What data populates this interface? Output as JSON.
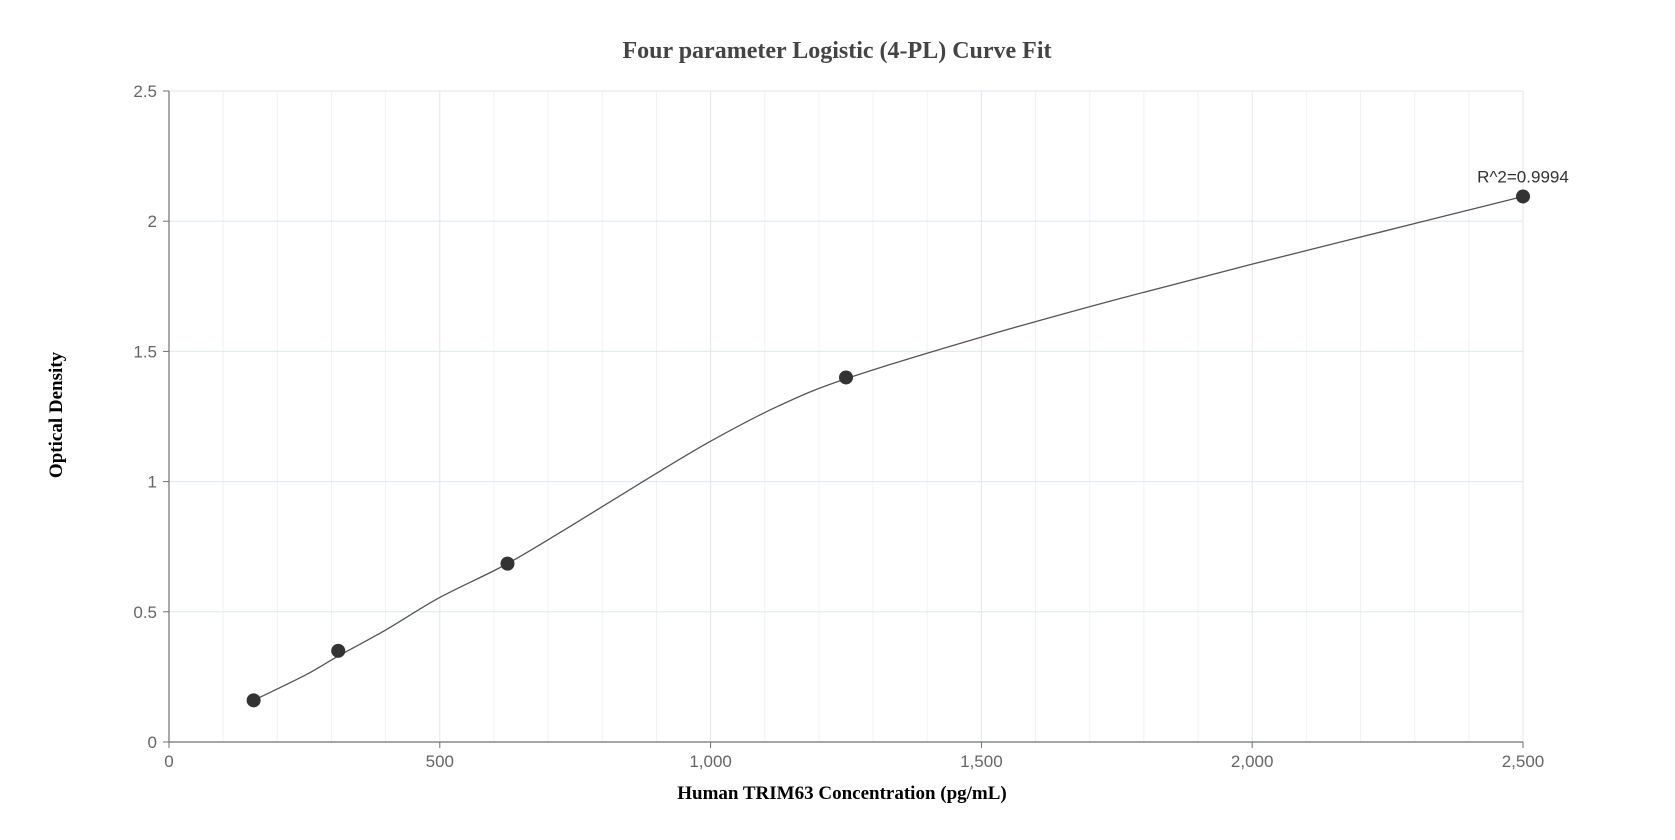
{
  "chart_data": {
    "type": "scatter",
    "title": "Four parameter Logistic (4-PL) Curve Fit",
    "xlabel": "Human TRIM63 Concentration (pg/mL)",
    "ylabel": "Optical Density",
    "xlim": [
      0,
      2500
    ],
    "ylim": [
      0,
      2.5
    ],
    "x_ticks": [
      0,
      500,
      1000,
      1500,
      2000,
      2500
    ],
    "x_tick_labels": [
      "0",
      "500",
      "1,000",
      "1,500",
      "2,000",
      "2,500"
    ],
    "y_ticks": [
      0,
      0.5,
      1,
      1.5,
      2,
      2.5
    ],
    "y_tick_labels": [
      "0",
      "0.5",
      "1",
      "1.5",
      "2",
      "2.5"
    ],
    "grid": true,
    "points": [
      {
        "x": 156.25,
        "y": 0.16
      },
      {
        "x": 312.5,
        "y": 0.35
      },
      {
        "x": 625,
        "y": 0.685
      },
      {
        "x": 1250,
        "y": 1.4
      },
      {
        "x": 2500,
        "y": 2.095
      }
    ],
    "fit_curve": [
      {
        "x": 156.25,
        "y": 0.16
      },
      {
        "x": 250,
        "y": 0.255
      },
      {
        "x": 312.5,
        "y": 0.33
      },
      {
        "x": 400,
        "y": 0.43
      },
      {
        "x": 500,
        "y": 0.555
      },
      {
        "x": 625,
        "y": 0.685
      },
      {
        "x": 750,
        "y": 0.84
      },
      {
        "x": 875,
        "y": 1.0
      },
      {
        "x": 1000,
        "y": 1.155
      },
      {
        "x": 1125,
        "y": 1.29
      },
      {
        "x": 1250,
        "y": 1.395
      },
      {
        "x": 1500,
        "y": 1.555
      },
      {
        "x": 1750,
        "y": 1.7
      },
      {
        "x": 2000,
        "y": 1.835
      },
      {
        "x": 2250,
        "y": 1.965
      },
      {
        "x": 2500,
        "y": 2.095
      }
    ],
    "annotation": "R^2=0.9994",
    "colors": {
      "point": "#333333",
      "curve": "#555555",
      "grid_major": "#e0e6f1",
      "grid_minor": "#f0f2f7",
      "axis": "#6e7079"
    }
  }
}
